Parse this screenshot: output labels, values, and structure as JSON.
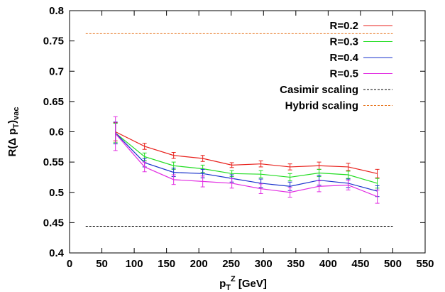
{
  "chart_data": {
    "type": "line",
    "title": "",
    "xlabel": {
      "main": "p",
      "sub": "T",
      "sup": "Z",
      "rest": " [GeV]"
    },
    "ylabel": {
      "main": "R(Δ p",
      "sub": "T",
      "rest": ")",
      "sub2": "vac"
    },
    "xlim": [
      0,
      550
    ],
    "ylim": [
      0.4,
      0.8
    ],
    "xticks": [
      0,
      50,
      100,
      150,
      200,
      250,
      300,
      350,
      400,
      450,
      500,
      550
    ],
    "yticks": [
      0.4,
      0.45,
      0.5,
      0.55,
      0.6,
      0.65,
      0.7,
      0.75,
      0.8
    ],
    "ytick_labels": [
      "0.4",
      "0.45",
      "0.5",
      "0.55",
      "0.6",
      "0.65",
      "0.7",
      "0.75",
      "0.8"
    ],
    "x": [
      71,
      116,
      161,
      206,
      251,
      296,
      341,
      386,
      431,
      476
    ],
    "legend_position": "top-right",
    "series": [
      {
        "name": "R=0.2",
        "color": "#e8211c",
        "style": "solid",
        "values": [
          0.6,
          0.576,
          0.561,
          0.556,
          0.545,
          0.547,
          0.542,
          0.544,
          0.542,
          0.531
        ],
        "errors": [
          0.015,
          0.005,
          0.005,
          0.005,
          0.004,
          0.005,
          0.005,
          0.006,
          0.006,
          0.007
        ]
      },
      {
        "name": "R=0.3",
        "color": "#22dd22",
        "style": "solid",
        "values": [
          0.598,
          0.559,
          0.544,
          0.539,
          0.531,
          0.53,
          0.525,
          0.532,
          0.529,
          0.515
        ],
        "errors": [
          0.016,
          0.006,
          0.006,
          0.006,
          0.005,
          0.006,
          0.006,
          0.006,
          0.006,
          0.008
        ]
      },
      {
        "name": "R=0.4",
        "color": "#1a33cc",
        "style": "solid",
        "values": [
          0.598,
          0.549,
          0.533,
          0.531,
          0.523,
          0.515,
          0.51,
          0.52,
          0.515,
          0.502
        ],
        "errors": [
          0.018,
          0.007,
          0.007,
          0.007,
          0.006,
          0.007,
          0.007,
          0.008,
          0.007,
          0.009
        ]
      },
      {
        "name": "R=0.5",
        "color": "#e22ee2",
        "style": "solid",
        "values": [
          0.597,
          0.542,
          0.521,
          0.518,
          0.515,
          0.506,
          0.5,
          0.51,
          0.512,
          0.493
        ],
        "errors": [
          0.028,
          0.008,
          0.008,
          0.009,
          0.008,
          0.008,
          0.008,
          0.009,
          0.008,
          0.011
        ]
      }
    ],
    "reference_lines": [
      {
        "name": "Casimir scaling",
        "color": "#000000",
        "style": "dashed",
        "y": 0.444,
        "x_range": [
          25,
          500
        ]
      },
      {
        "name": "Hybrid scaling",
        "color": "#e87722",
        "style": "dashed",
        "y": 0.762,
        "x_range": [
          25,
          500
        ]
      }
    ]
  }
}
